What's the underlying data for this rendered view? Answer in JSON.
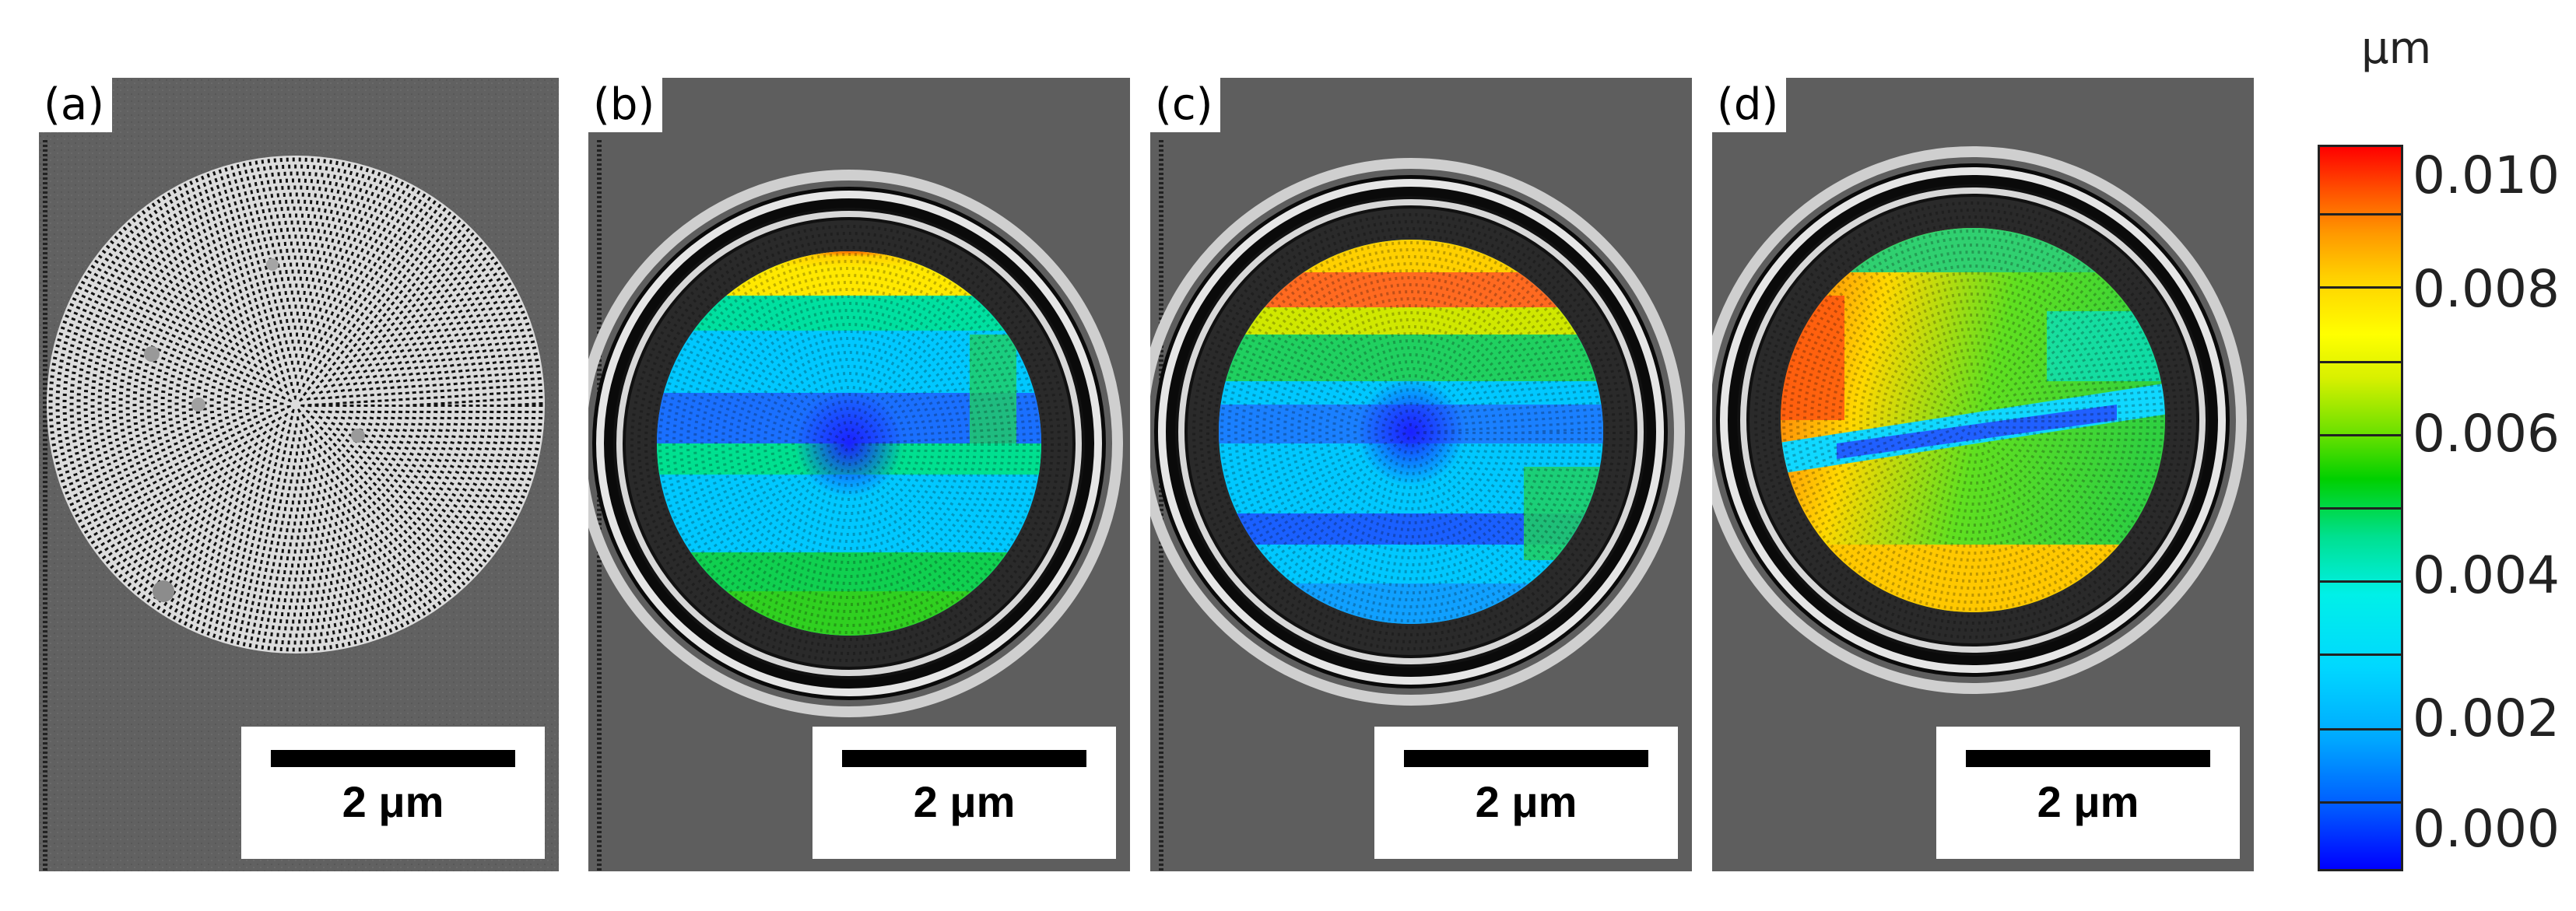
{
  "panels": [
    {
      "label": "(a)",
      "scalebar": "2 μm",
      "type": "sem"
    },
    {
      "label": "(b)",
      "scalebar": "2 μm",
      "type": "map"
    },
    {
      "label": "(c)",
      "scalebar": "2 μm",
      "type": "map"
    },
    {
      "label": "(d)",
      "scalebar": "2 μm",
      "type": "map"
    }
  ],
  "colorbar": {
    "unit": "μm",
    "tick_labels": [
      "0.010",
      "0.008",
      "0.006",
      "0.004",
      "0.002",
      "0.000"
    ],
    "colors": [
      "#0000ff",
      "#00a8ff",
      "#00f0e8",
      "#00d000",
      "#ffff00",
      "#ff9900",
      "#ff0000"
    ]
  }
}
